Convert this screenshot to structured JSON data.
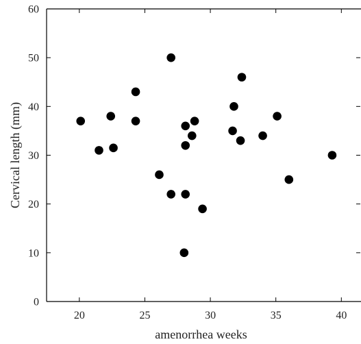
{
  "chart_data": {
    "type": "scatter",
    "title": "",
    "xlabel": "amenorrhea weeks",
    "ylabel": "Cervical length (mm)",
    "xlim": [
      17.5,
      41.5
    ],
    "ylim": [
      0,
      60
    ],
    "xticks": [
      20,
      25,
      30,
      35,
      40
    ],
    "yticks": [
      0,
      10,
      20,
      30,
      40,
      50,
      60
    ],
    "grid": false,
    "legend": "none",
    "marker_color": "#000000",
    "points": [
      {
        "x": 20.1,
        "y": 37
      },
      {
        "x": 21.5,
        "y": 31
      },
      {
        "x": 22.4,
        "y": 38
      },
      {
        "x": 22.6,
        "y": 31.5
      },
      {
        "x": 24.3,
        "y": 43
      },
      {
        "x": 24.3,
        "y": 37
      },
      {
        "x": 26.1,
        "y": 26
      },
      {
        "x": 27.0,
        "y": 50
      },
      {
        "x": 27.0,
        "y": 22
      },
      {
        "x": 28.0,
        "y": 10
      },
      {
        "x": 28.1,
        "y": 22
      },
      {
        "x": 28.1,
        "y": 36
      },
      {
        "x": 28.1,
        "y": 32
      },
      {
        "x": 28.6,
        "y": 34
      },
      {
        "x": 28.8,
        "y": 37
      },
      {
        "x": 29.4,
        "y": 19
      },
      {
        "x": 31.7,
        "y": 35
      },
      {
        "x": 31.8,
        "y": 40
      },
      {
        "x": 32.3,
        "y": 33
      },
      {
        "x": 32.4,
        "y": 46
      },
      {
        "x": 34.0,
        "y": 34
      },
      {
        "x": 35.1,
        "y": 38
      },
      {
        "x": 36.0,
        "y": 25
      },
      {
        "x": 39.3,
        "y": 30
      }
    ]
  }
}
